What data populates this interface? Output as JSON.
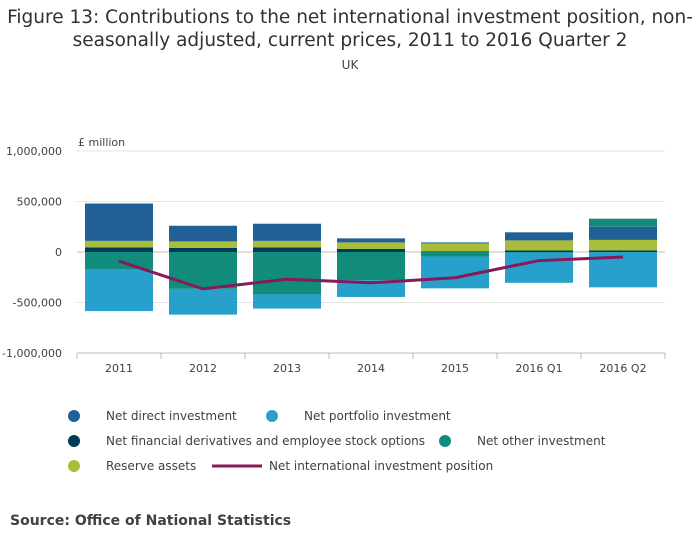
{
  "header": {
    "title": "Figure 13: Contributions to the net international investment position, non-seasonally adjusted, current prices, 2011 to 2016 Quarter 2",
    "subtitle": "UK"
  },
  "footer": {
    "source": "Source: Office of National Statistics"
  },
  "colors": {
    "direct": "#206095",
    "portfolio": "#27a0cc",
    "derivatives": "#003c57",
    "other": "#118c7b",
    "reserve": "#a8bd3a",
    "niip": "#871a5b",
    "grid": "#e4e4e4",
    "axis": "#bcbcbc"
  },
  "chart_data": {
    "type": "bar",
    "stacked": true,
    "title": "Figure 13: Contributions to the net international investment position, non-seasonally adjusted, current prices, 2011 to 2016 Quarter 2",
    "subtitle": "UK",
    "ylabel": "£ million",
    "xlabel": "",
    "ylim": [
      -1000000,
      1000000
    ],
    "yticks": [
      1000000,
      500000,
      0,
      -500000,
      -1000000
    ],
    "ytick_labels": [
      "1,000,000",
      "500,000",
      "0",
      "-500,000",
      "-1,000,000"
    ],
    "categories": [
      "2011",
      "2012",
      "2013",
      "2014",
      "2015",
      "2016 Q1",
      "2016 Q2"
    ],
    "grid": true,
    "legend_position": "bottom",
    "series": [
      {
        "key": "direct",
        "name": "Net direct investment",
        "kind": "bar",
        "values": [
          370000,
          155000,
          170000,
          40000,
          10000,
          80000,
          130000
        ]
      },
      {
        "key": "portfolio",
        "name": "Net portfolio investment",
        "kind": "bar",
        "values": [
          -410000,
          -255000,
          -140000,
          -165000,
          -315000,
          -300000,
          -350000
        ]
      },
      {
        "key": "derivatives",
        "name": "Net financial derivatives and employee stock options",
        "kind": "bar",
        "values": [
          45000,
          40000,
          45000,
          30000,
          5000,
          15000,
          15000
        ]
      },
      {
        "key": "other",
        "name": "Net other investment",
        "kind": "bar",
        "values": [
          -175000,
          -365000,
          -420000,
          -280000,
          -45000,
          -5000,
          80000
        ]
      },
      {
        "key": "reserve",
        "name": "Reserve assets",
        "kind": "bar",
        "values": [
          65000,
          65000,
          65000,
          65000,
          80000,
          100000,
          105000
        ]
      },
      {
        "key": "niip",
        "name": "Net international investment position",
        "kind": "line",
        "values": [
          -90000,
          -365000,
          -270000,
          -305000,
          -255000,
          -85000,
          -50000
        ]
      }
    ]
  }
}
